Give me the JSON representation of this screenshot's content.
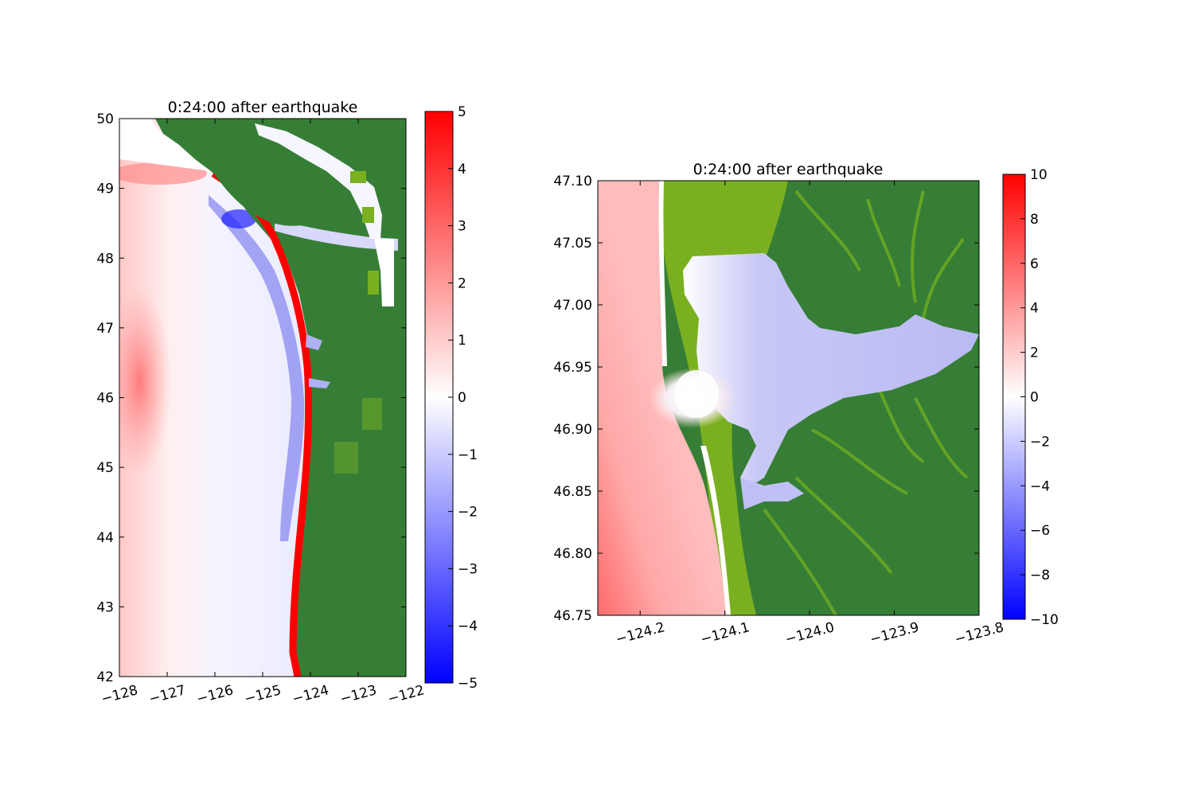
{
  "chart_data": [
    {
      "type": "heatmap",
      "title": "0:24:00 after earthquake",
      "xlim": [
        -128,
        -122
      ],
      "ylim": [
        42,
        50
      ],
      "x_ticks": [
        -128,
        -127,
        -126,
        -125,
        -124,
        -123,
        -122
      ],
      "y_ticks": [
        42,
        43,
        44,
        45,
        46,
        47,
        48,
        49,
        50
      ],
      "x_tick_labels": [
        "−128",
        "−127",
        "−126",
        "−125",
        "−124",
        "−123",
        "−122"
      ],
      "y_tick_labels": [
        "42",
        "43",
        "44",
        "45",
        "46",
        "47",
        "48",
        "49",
        "50"
      ],
      "colorbar": {
        "vmin": -5,
        "vmax": 5,
        "ticks": [
          5,
          4,
          3,
          2,
          1,
          0,
          -1,
          -2,
          -3,
          -4,
          -5
        ],
        "tick_labels": [
          "5",
          "4",
          "3",
          "2",
          "1",
          "0",
          "−1",
          "−2",
          "−3",
          "−4",
          "−5"
        ],
        "colors": {
          "low": "#0000ff",
          "mid": "#ffffff",
          "high": "#ff0000"
        }
      },
      "land_color": "#367e36",
      "land_light_color": "#7ab020"
    },
    {
      "type": "heatmap",
      "title": "0:24:00 after earthquake",
      "xlim": [
        -124.25,
        -123.8
      ],
      "ylim": [
        46.75,
        47.1
      ],
      "x_ticks": [
        -124.2,
        -124.1,
        -124.0,
        -123.9,
        -123.8
      ],
      "y_ticks": [
        46.75,
        46.8,
        46.85,
        46.9,
        46.95,
        47.0,
        47.05,
        47.1
      ],
      "x_tick_labels": [
        "−124.2",
        "−124.1",
        "−124.0",
        "−123.9",
        "−123.8"
      ],
      "y_tick_labels": [
        "46.75",
        "46.80",
        "46.85",
        "46.90",
        "46.95",
        "47.00",
        "47.05",
        "47.10"
      ],
      "colorbar": {
        "vmin": -10,
        "vmax": 10,
        "ticks": [
          10,
          8,
          6,
          4,
          2,
          0,
          -2,
          -4,
          -6,
          -8,
          -10
        ],
        "tick_labels": [
          "10",
          "8",
          "6",
          "4",
          "2",
          "0",
          "−2",
          "−4",
          "−6",
          "−8",
          "−10"
        ],
        "colors": {
          "low": "#0000ff",
          "mid": "#ffffff",
          "high": "#ff0000"
        }
      },
      "land_color": "#367e36",
      "land_light_color": "#7ab020",
      "water_color": "#bcbcf6"
    }
  ]
}
